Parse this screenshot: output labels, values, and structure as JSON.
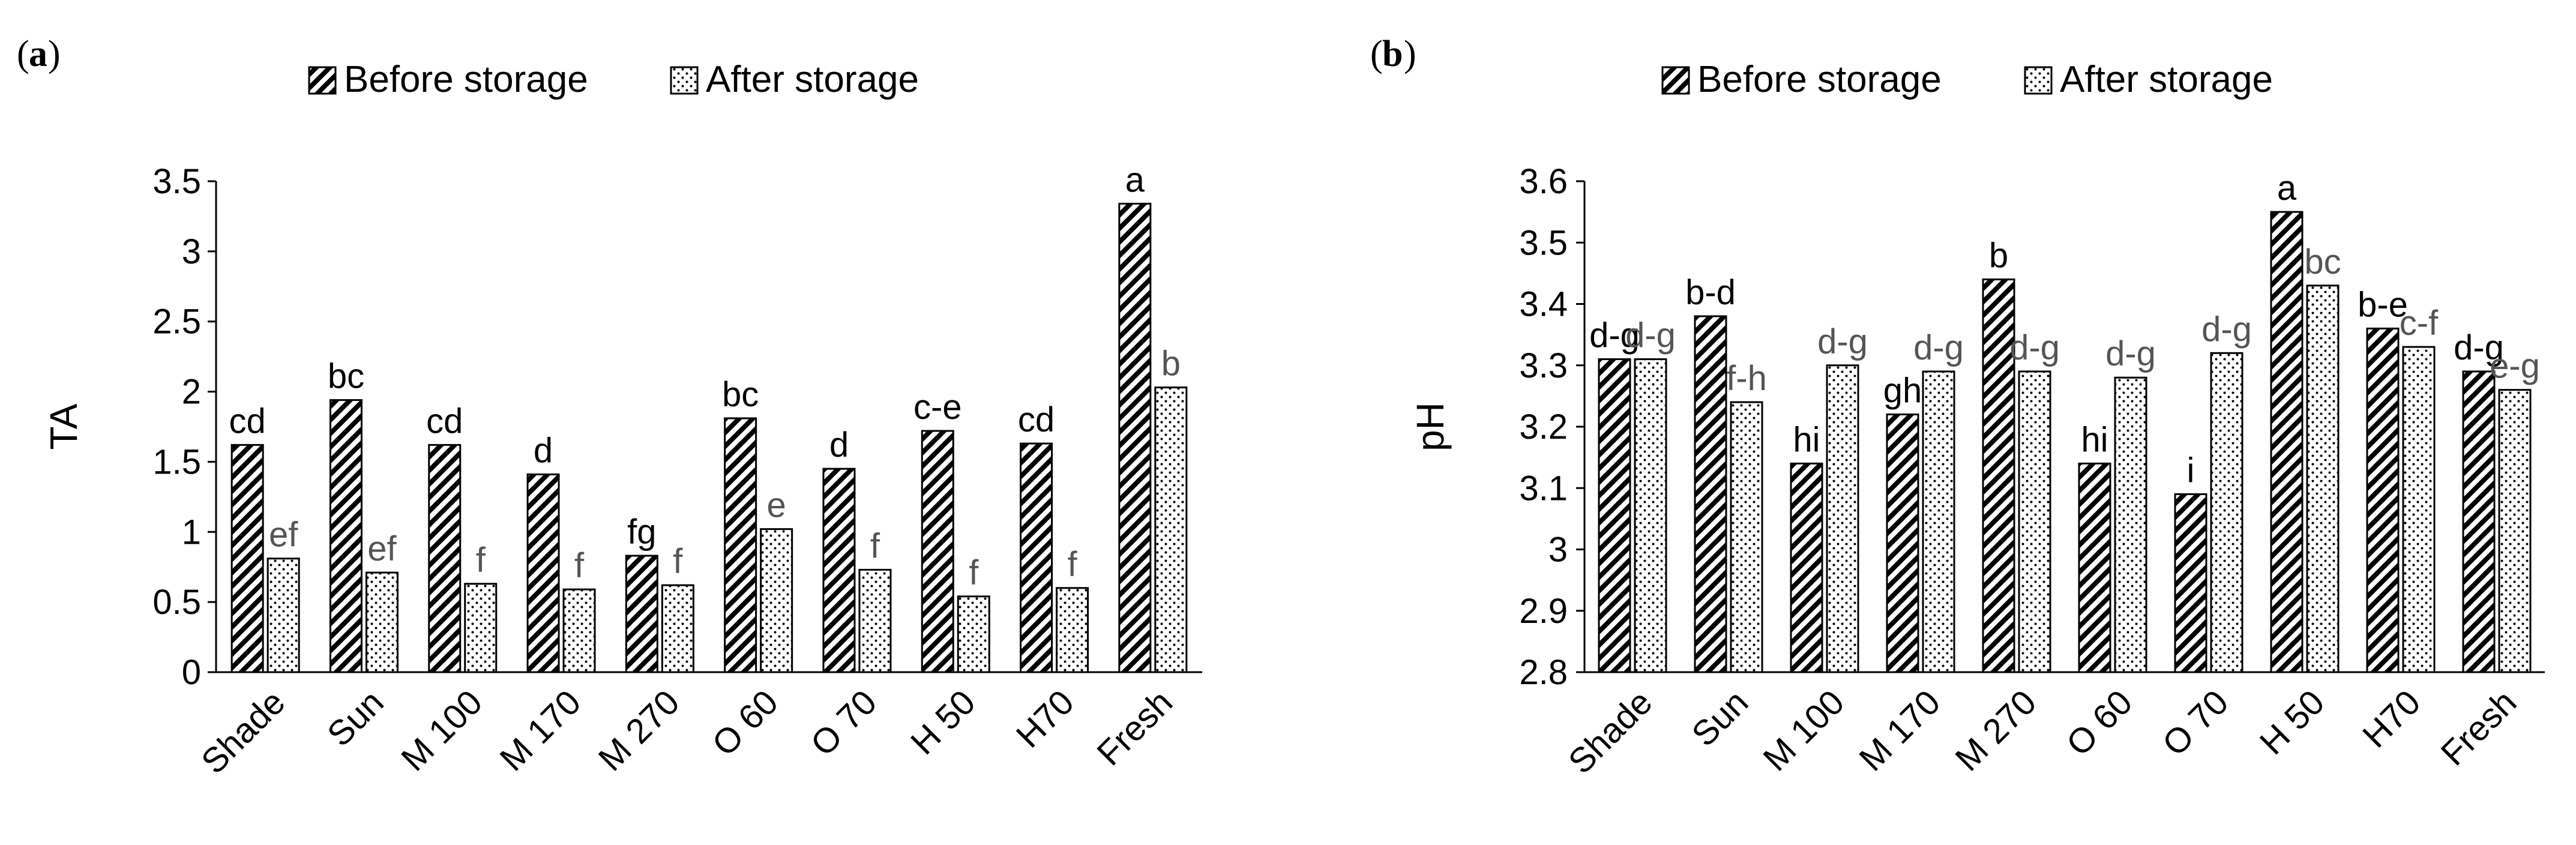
{
  "legend": {
    "before_label": "Before storage",
    "after_label": "After storage"
  },
  "chart_data": [
    {
      "panel": "(a)",
      "panel_letter": "a",
      "type": "bar",
      "ylabel": "TA",
      "xlabel": "",
      "ylim": [
        0,
        3.5
      ],
      "yticks": [
        0,
        0.5,
        1,
        1.5,
        2,
        2.5,
        3,
        3.5
      ],
      "ytick_labels": [
        "0",
        "0.5",
        "1",
        "1.5",
        "2",
        "2.5",
        "3",
        "3.5"
      ],
      "categories": [
        "Shade",
        "Sun",
        "M 100",
        "M 170",
        "M 270",
        "O 60",
        "O 70",
        "H 50",
        "H70",
        "Fresh"
      ],
      "series": [
        {
          "name": "Before storage",
          "values": [
            1.62,
            1.94,
            1.62,
            1.41,
            0.83,
            1.81,
            1.45,
            1.72,
            1.63,
            3.34
          ],
          "labels": [
            "cd",
            "bc",
            "cd",
            "d",
            "fg",
            "bc",
            "d",
            "c-e",
            "cd",
            "a"
          ]
        },
        {
          "name": "After storage",
          "values": [
            0.81,
            0.71,
            0.63,
            0.59,
            0.62,
            1.02,
            0.73,
            0.54,
            0.6,
            2.03
          ],
          "labels": [
            "ef",
            "ef",
            "f",
            "f",
            "f",
            "e",
            "f",
            "f",
            "f",
            "b"
          ]
        }
      ]
    },
    {
      "panel": "(b)",
      "panel_letter": "b",
      "type": "bar",
      "ylabel": "pH",
      "xlabel": "",
      "ylim": [
        2.8,
        3.6
      ],
      "yticks": [
        2.8,
        2.9,
        3.0,
        3.1,
        3.2,
        3.3,
        3.4,
        3.5,
        3.6
      ],
      "ytick_labels": [
        "2.8",
        "2.9",
        "3",
        "3.1",
        "3.2",
        "3.3",
        "3.4",
        "3.5",
        "3.6"
      ],
      "categories": [
        "Shade",
        "Sun",
        "M 100",
        "M 170",
        "M 270",
        "O 60",
        "O 70",
        "H 50",
        "H70",
        "Fresh"
      ],
      "series": [
        {
          "name": "Before storage",
          "values": [
            3.31,
            3.38,
            3.14,
            3.22,
            3.44,
            3.14,
            3.09,
            3.55,
            3.36,
            3.29
          ],
          "labels": [
            "d-g",
            "b-d",
            "hi",
            "gh",
            "b",
            "hi",
            "i",
            "a",
            "b-e",
            "d-g"
          ]
        },
        {
          "name": "After storage",
          "values": [
            3.31,
            3.24,
            3.3,
            3.29,
            3.29,
            3.28,
            3.32,
            3.43,
            3.33,
            3.26
          ],
          "labels": [
            "d-g",
            "f-h",
            "d-g",
            "d-g",
            "d-g",
            "d-g",
            "d-g",
            "bc",
            "c-f",
            "e-g"
          ]
        }
      ]
    }
  ]
}
